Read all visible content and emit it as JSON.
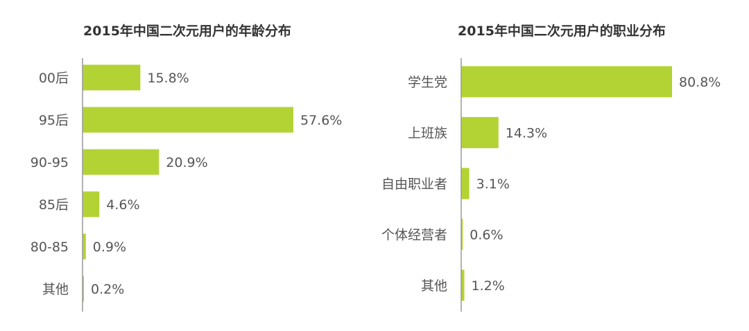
{
  "colors": {
    "bar": "#b3d335",
    "axis": "#999999",
    "text": "#555555"
  },
  "chart_data": [
    {
      "type": "bar",
      "orientation": "horizontal",
      "title": "2015年中国二次元用户的年龄分布",
      "categories": [
        "00后",
        "95后",
        "90-95",
        "85后",
        "80-85",
        "其他"
      ],
      "values": [
        15.8,
        57.6,
        20.9,
        4.6,
        0.9,
        0.2
      ],
      "value_labels": [
        "15.8%",
        "57.6%",
        "20.9%",
        "4.6%",
        "0.9%",
        "0.2%"
      ],
      "unit": "%",
      "xlim": [
        0,
        100
      ],
      "grid": false,
      "legend": "none"
    },
    {
      "type": "bar",
      "orientation": "horizontal",
      "title": "2015年中国二次元用户的职业分布",
      "categories": [
        "学生党",
        "上班族",
        "自由职业者",
        "个体经营者",
        "其他"
      ],
      "values": [
        80.8,
        14.3,
        3.1,
        0.6,
        1.2
      ],
      "value_labels": [
        "80.8%",
        "14.3%",
        "3.1%",
        "0.6%",
        "1.2%"
      ],
      "unit": "%",
      "xlim": [
        0,
        100
      ],
      "grid": false,
      "legend": "none"
    }
  ]
}
